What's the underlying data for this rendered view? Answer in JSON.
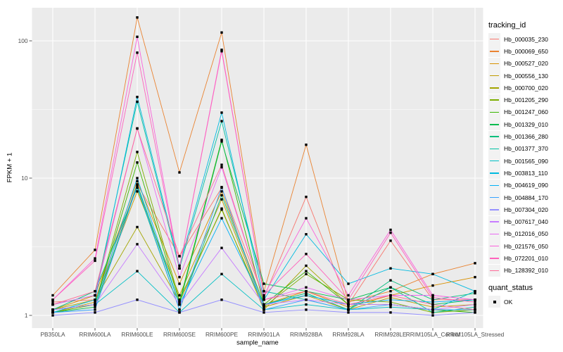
{
  "figure": {
    "background": "#FFFFFF",
    "panel_background": "#EBEBEB",
    "gridline_color": "#FFFFFF",
    "tick_label_color": "#4D4D4D",
    "tick_mark_color": "#333333",
    "x_axis_title": "sample_name",
    "y_axis_title": "FPKM + 1"
  },
  "legend": {
    "key_fill": "#F2F2F2",
    "tracking_title": "tracking_id",
    "quant_title": "quant_status",
    "quant_items": [
      {
        "label": "OK",
        "marker": "black-square",
        "color": "#000000"
      }
    ]
  },
  "chart_data": {
    "type": "line",
    "title": "",
    "xlabel": "sample_name",
    "ylabel": "FPKM + 1",
    "y_scale": "log10",
    "grid": true,
    "legend_position": "right",
    "point_marker": "square",
    "point_color": "#000000",
    "y_ticks": [
      1,
      10,
      100
    ],
    "y_minor_ticks": [
      3.1623,
      31.623
    ],
    "ylim": [
      1,
      160
    ],
    "categories": [
      "PB350LA",
      "RRIM600LA",
      "RRIM600LE",
      "RRIM600SE",
      "RRIM600PE",
      "RRIM901LA",
      "RRIM928BA",
      "RRIM928LA",
      "RRIM928LE",
      "RRIM105LA_Control",
      "RRIM105LA_Stressed"
    ],
    "series": [
      {
        "name": "Hb_000035_230",
        "color": "#F8766D",
        "values": [
          1.25,
          1.3,
          9.0,
          2.7,
          8.5,
          1.35,
          7.3,
          1.2,
          3.5,
          1.3,
          1.3
        ]
      },
      {
        "name": "Hb_000069_650",
        "color": "#EA8331",
        "values": [
          1.4,
          3.0,
          148,
          11,
          115,
          1.5,
          17.5,
          1.25,
          1.5,
          2.0,
          2.4
        ]
      },
      {
        "name": "Hb_000527_020",
        "color": "#D89000",
        "values": [
          1.1,
          1.4,
          9.5,
          1.7,
          8.0,
          1.2,
          1.5,
          1.15,
          1.4,
          1.65,
          1.9
        ]
      },
      {
        "name": "Hb_000556_130",
        "color": "#C09B00",
        "values": [
          1.05,
          1.25,
          8.0,
          1.4,
          7.0,
          1.15,
          1.4,
          1.1,
          1.35,
          1.15,
          1.2
        ]
      },
      {
        "name": "Hb_000700_020",
        "color": "#A3A500",
        "values": [
          1.1,
          1.3,
          4.4,
          1.25,
          6.0,
          1.1,
          2.3,
          1.2,
          1.2,
          1.1,
          1.1
        ]
      },
      {
        "name": "Hb_001205_290",
        "color": "#7CAE00",
        "values": [
          1.05,
          1.2,
          15.5,
          1.3,
          5.9,
          1.15,
          2.0,
          1.3,
          1.25,
          1.05,
          1.1
        ]
      },
      {
        "name": "Hb_001247_060",
        "color": "#39B600",
        "values": [
          1.1,
          1.2,
          13.0,
          1.25,
          19.0,
          1.2,
          2.1,
          1.2,
          1.2,
          1.1,
          1.05
        ]
      },
      {
        "name": "Hb_001329_010",
        "color": "#00BB4E",
        "values": [
          1.05,
          1.15,
          9.0,
          1.2,
          18.5,
          1.7,
          1.5,
          1.3,
          1.6,
          1.2,
          1.3
        ]
      },
      {
        "name": "Hb_001366_280",
        "color": "#00BF7D",
        "values": [
          1.1,
          1.5,
          8.5,
          1.1,
          7.5,
          1.2,
          1.45,
          1.1,
          1.8,
          1.3,
          1.45
        ]
      },
      {
        "name": "Hb_001377_370",
        "color": "#00C1A3",
        "values": [
          1.2,
          1.4,
          36.0,
          2.2,
          26.0,
          1.5,
          1.3,
          1.1,
          1.6,
          1.05,
          1.15
        ]
      },
      {
        "name": "Hb_001565_090",
        "color": "#00BFC4",
        "values": [
          1.1,
          1.2,
          2.1,
          1.05,
          2.0,
          1.1,
          1.2,
          1.1,
          1.15,
          1.1,
          1.5
        ]
      },
      {
        "name": "Hb_003813_110",
        "color": "#00BAE0",
        "values": [
          1.05,
          1.3,
          39.0,
          2.3,
          30.0,
          1.3,
          3.9,
          1.7,
          2.2,
          2.0,
          1.5
        ]
      },
      {
        "name": "Hb_004619_090",
        "color": "#00B0F6",
        "values": [
          1.1,
          1.2,
          10.0,
          1.2,
          5.1,
          1.2,
          1.4,
          1.2,
          1.3,
          1.25,
          1.3
        ]
      },
      {
        "name": "Hb_004884_170",
        "color": "#35A2FF",
        "values": [
          1.05,
          1.1,
          8.8,
          1.1,
          8.6,
          1.1,
          1.3,
          1.1,
          1.2,
          1.1,
          1.1
        ]
      },
      {
        "name": "Hb_007304_020",
        "color": "#9590FF",
        "values": [
          1.0,
          1.05,
          1.3,
          1.05,
          1.3,
          1.05,
          1.1,
          1.05,
          1.05,
          1.0,
          1.05
        ]
      },
      {
        "name": "Hb_007617_040",
        "color": "#C77CFF",
        "values": [
          1.1,
          1.2,
          3.3,
          1.2,
          3.1,
          1.2,
          1.3,
          1.2,
          1.2,
          1.1,
          1.2
        ]
      },
      {
        "name": "Hb_012016_050",
        "color": "#E76BF3",
        "values": [
          1.2,
          1.4,
          23.0,
          1.9,
          12.0,
          1.3,
          1.6,
          1.3,
          1.4,
          1.4,
          1.3
        ]
      },
      {
        "name": "Hb_021576_050",
        "color": "#FA62DB",
        "values": [
          1.3,
          2.6,
          107.0,
          2.2,
          86.0,
          1.4,
          5.1,
          1.4,
          4.2,
          1.4,
          1.3
        ]
      },
      {
        "name": "Hb_072201_010",
        "color": "#FF62BC",
        "values": [
          1.3,
          2.5,
          82.0,
          2.2,
          84.0,
          1.4,
          2.8,
          1.3,
          4.0,
          1.35,
          1.25
        ]
      },
      {
        "name": "Hb_128392_010",
        "color": "#FF6A98",
        "values": [
          1.2,
          1.5,
          23.0,
          2.7,
          12.5,
          1.3,
          1.5,
          1.2,
          1.4,
          1.2,
          1.1
        ]
      }
    ]
  }
}
